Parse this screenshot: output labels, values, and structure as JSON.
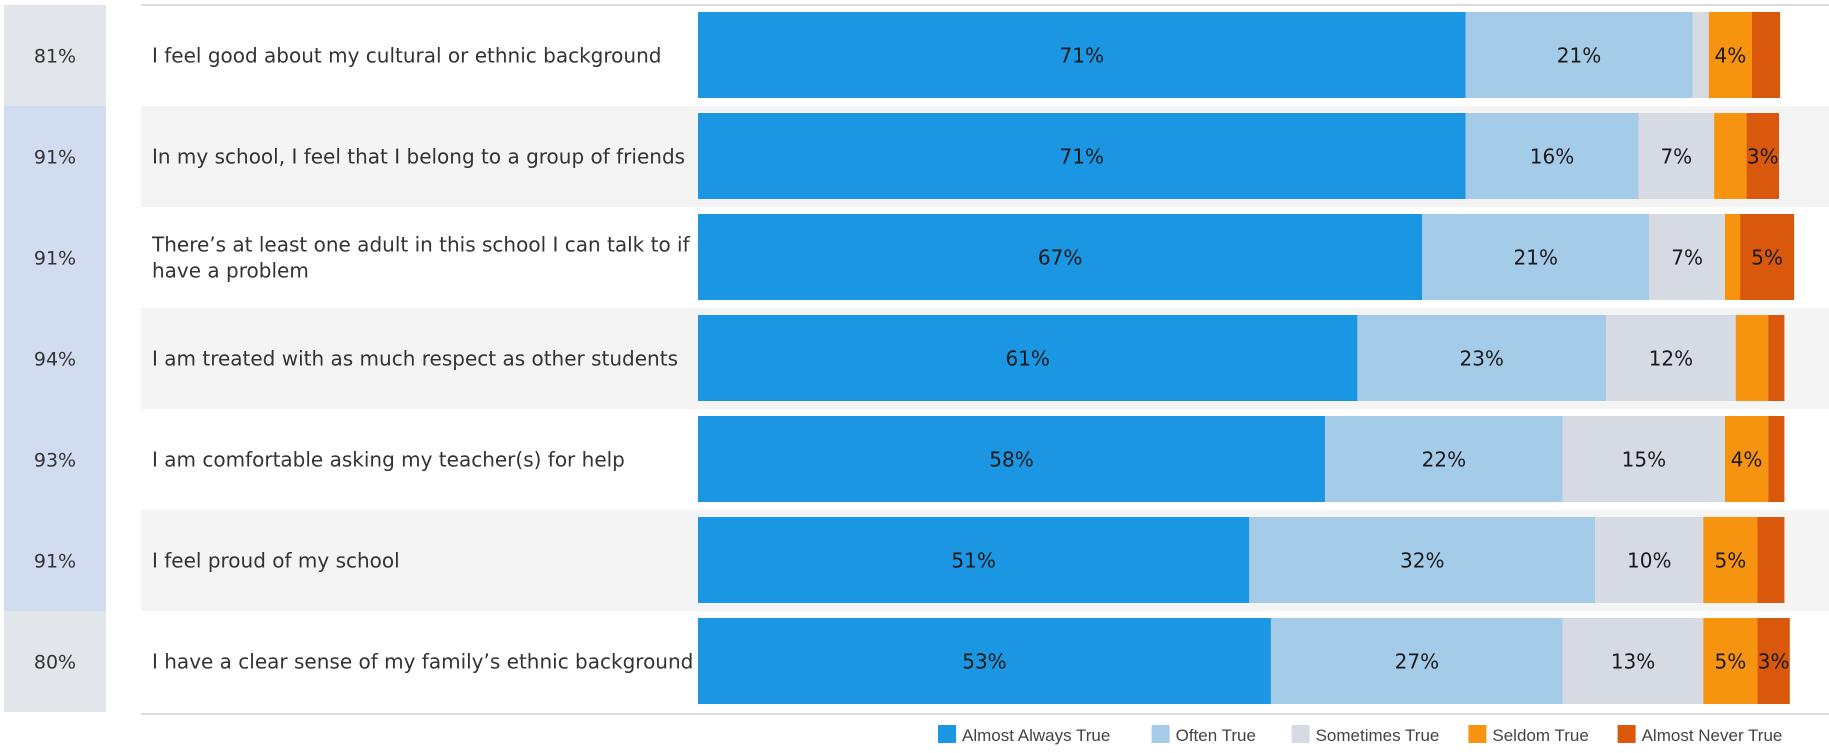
{
  "chart_data": {
    "type": "bar",
    "orientation": "horizontal",
    "stacked": true,
    "total_percent_column": [
      "81%",
      "91%",
      "91%",
      "94%",
      "93%",
      "91%",
      "80%"
    ],
    "categories": [
      "I feel good about my cultural or ethnic background",
      "In my school, I feel that I belong to a group of friends",
      "There’s at least one adult in this school I can talk to if I have a problem",
      "I am treated with as much respect as other students",
      "I am comfortable asking my teacher(s) for help",
      "I feel proud of my school",
      "I have a clear sense of my family’s ethnic background"
    ],
    "category_lines": [
      [
        "I feel good about my cultural or ethnic background"
      ],
      [
        "In my school, I feel that I belong to a group of friends"
      ],
      [
        "There’s at least one adult in this school I can talk to if I",
        "have a problem"
      ],
      [
        "I am treated with as much respect as other students"
      ],
      [
        "I am comfortable asking my teacher(s) for help"
      ],
      [
        "I feel proud of my school"
      ],
      [
        "I have a clear sense of my family’s ethnic background"
      ]
    ],
    "series": [
      {
        "name": "Almost Always True",
        "color": "#1a96e2",
        "values": [
          71,
          71,
          67,
          61,
          58,
          51,
          53
        ],
        "labels": [
          "71%",
          "71%",
          "67%",
          "61%",
          "58%",
          "51%",
          "53%"
        ]
      },
      {
        "name": "Often True",
        "color": "#a4cbe8",
        "values": [
          21,
          16,
          21,
          23,
          22,
          32,
          27
        ],
        "labels": [
          "21%",
          "16%",
          "21%",
          "23%",
          "22%",
          "32%",
          "27%"
        ]
      },
      {
        "name": "Sometimes True",
        "color": "#d5dae3",
        "values": [
          1.5,
          7,
          7,
          12,
          15,
          10,
          13
        ],
        "labels": [
          "",
          "7%",
          "7%",
          "12%",
          "15%",
          "10%",
          "13%"
        ]
      },
      {
        "name": "Seldom True",
        "color": "#f7940f",
        "values": [
          4,
          3,
          1.4,
          3,
          4,
          5,
          5
        ],
        "labels": [
          "4%",
          "",
          "",
          "",
          "4%",
          "5%",
          "5%"
        ]
      },
      {
        "name": "Almost Never True",
        "color": "#d9580c",
        "values": [
          2.6,
          3,
          5,
          1.5,
          1.5,
          2.5,
          3
        ],
        "labels": [
          "",
          "3%",
          "5%",
          "",
          "",
          "",
          "3%"
        ]
      }
    ],
    "xlim": [
      0,
      100
    ],
    "legend_position": "bottom-right",
    "grid": false
  }
}
